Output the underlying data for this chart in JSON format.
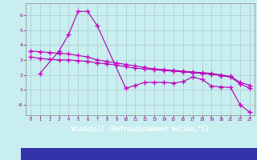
{
  "bg_color": "#c8eef0",
  "grid_color": "#aacccc",
  "line_color": "#aa00aa",
  "marker_color": "#cc00cc",
  "xlabel": "Windchill (Refroidissement éolien,°C)",
  "xlabel_color": "#cc00cc",
  "xlabel_bg": "#3333aa",
  "ylabel_ticks": [
    0,
    1,
    2,
    3,
    4,
    5,
    6
  ],
  "ytick_labels": [
    "-0",
    "1",
    "2",
    "3",
    "4",
    "5",
    "6"
  ],
  "xlim": [
    -0.5,
    23.5
  ],
  "ylim": [
    -0.7,
    6.8
  ],
  "xticks": [
    0,
    1,
    2,
    3,
    4,
    5,
    6,
    7,
    8,
    9,
    10,
    11,
    12,
    13,
    14,
    15,
    16,
    17,
    18,
    19,
    20,
    21,
    22,
    23
  ],
  "yticks": [
    0,
    1,
    2,
    3,
    4,
    5,
    6
  ],
  "series1_x": [
    1,
    3,
    4,
    5,
    6,
    7,
    10,
    11,
    12,
    13,
    14,
    15,
    16,
    17,
    18,
    19,
    20,
    21,
    22,
    23
  ],
  "series1_y": [
    2.1,
    3.6,
    4.7,
    6.25,
    6.25,
    5.3,
    1.1,
    1.3,
    1.5,
    1.5,
    1.5,
    1.45,
    1.55,
    1.85,
    1.7,
    1.25,
    1.2,
    1.15,
    0.0,
    -0.5
  ],
  "series2_x": [
    0,
    1,
    2,
    3,
    4,
    5,
    6,
    7,
    8,
    9,
    10,
    11,
    12,
    13,
    14,
    15,
    16,
    17,
    18,
    19,
    20,
    21,
    22,
    23
  ],
  "series2_y": [
    3.6,
    3.55,
    3.5,
    3.45,
    3.4,
    3.3,
    3.2,
    3.0,
    2.9,
    2.8,
    2.7,
    2.6,
    2.5,
    2.4,
    2.35,
    2.3,
    2.25,
    2.2,
    2.15,
    2.1,
    2.0,
    1.9,
    1.5,
    1.3
  ],
  "series3_x": [
    0,
    1,
    2,
    3,
    4,
    5,
    6,
    7,
    8,
    9,
    10,
    11,
    12,
    13,
    14,
    15,
    16,
    17,
    18,
    19,
    20,
    21,
    22,
    23
  ],
  "series3_y": [
    3.2,
    3.1,
    3.05,
    3.0,
    3.0,
    2.95,
    2.9,
    2.8,
    2.75,
    2.65,
    2.55,
    2.45,
    2.4,
    2.35,
    2.3,
    2.25,
    2.2,
    2.15,
    2.1,
    2.05,
    1.95,
    1.85,
    1.4,
    1.1
  ]
}
